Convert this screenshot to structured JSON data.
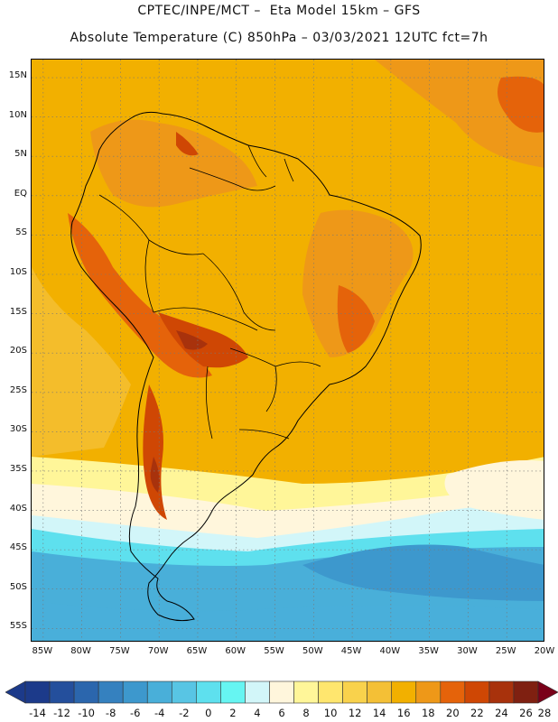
{
  "header": {
    "line1": "CPTEC/INPE/MCT –  Eta Model 15km – GFS",
    "line2": "Absolute Temperature (C) 850hPa – 03/03/2021 12UTC fct=7h"
  },
  "map": {
    "lat_labels": [
      "15N",
      "10N",
      "5N",
      "EQ",
      "5S",
      "10S",
      "15S",
      "20S",
      "25S",
      "30S",
      "35S",
      "40S",
      "45S",
      "50S",
      "55S"
    ],
    "lon_labels": [
      "85W",
      "80W",
      "75W",
      "70W",
      "65W",
      "60W",
      "55W",
      "50W",
      "45W",
      "40W",
      "35W",
      "30W",
      "25W",
      "20W"
    ],
    "background_color": "#f2b000"
  },
  "colorbar": {
    "labels": [
      "-14",
      "-12",
      "-10",
      "-8",
      "-6",
      "-4",
      "-2",
      "0",
      "2",
      "4",
      "6",
      "8",
      "10",
      "12",
      "14",
      "16",
      "18",
      "20",
      "22",
      "24",
      "26",
      "28"
    ],
    "colors": [
      "#1c3a8a",
      "#244f9c",
      "#2b66ad",
      "#3581bf",
      "#3d98cd",
      "#49afd9",
      "#58c5e4",
      "#5ee0ee",
      "#66f5f2",
      "#d2f6f9",
      "#fff6dc",
      "#fff699",
      "#ffe66e",
      "#f9d24c",
      "#f4c036",
      "#f2b000",
      "#ee9818",
      "#e5630a",
      "#cf4704",
      "#a8320c",
      "#7f2011"
    ]
  }
}
